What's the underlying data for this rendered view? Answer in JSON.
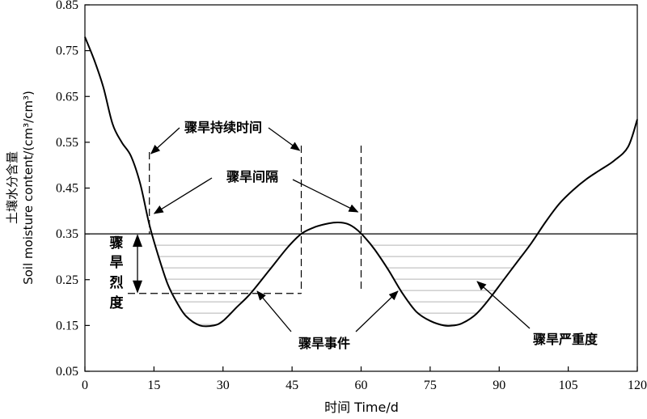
{
  "chart_data": {
    "type": "line",
    "xlabel": "时间 Time/d",
    "ylabel_cn": "土壤水分含量",
    "ylabel_en": "Soil moisture content/(cm³/cm³)",
    "xlim": [
      0,
      120
    ],
    "ylim": [
      0.05,
      0.85
    ],
    "x_ticks": [
      "0",
      "15",
      "30",
      "45",
      "60",
      "75",
      "90",
      "105",
      "120"
    ],
    "y_ticks": [
      "0.05",
      "0.15",
      "0.25",
      "0.35",
      "0.45",
      "0.55",
      "0.65",
      "0.75",
      "0.85"
    ],
    "threshold": 0.35,
    "series": [
      {
        "x": [
          0,
          2,
          4,
          6,
          8,
          10,
          12,
          14,
          16,
          18,
          20,
          22,
          25,
          28,
          30,
          33,
          36,
          40,
          44,
          47,
          50,
          53,
          55,
          57,
          59,
          61,
          63,
          66,
          69,
          72,
          75,
          78,
          80,
          82,
          85,
          88,
          91,
          94,
          97,
          100,
          103,
          106,
          109,
          112,
          115,
          118,
          120
        ],
        "y": [
          0.78,
          0.73,
          0.67,
          0.59,
          0.55,
          0.52,
          0.46,
          0.37,
          0.3,
          0.24,
          0.2,
          0.17,
          0.15,
          0.15,
          0.16,
          0.19,
          0.22,
          0.27,
          0.32,
          0.35,
          0.365,
          0.373,
          0.375,
          0.372,
          0.36,
          0.34,
          0.315,
          0.27,
          0.22,
          0.18,
          0.16,
          0.15,
          0.15,
          0.155,
          0.175,
          0.21,
          0.25,
          0.29,
          0.33,
          0.375,
          0.415,
          0.445,
          0.47,
          0.49,
          0.51,
          0.54,
          0.6
        ]
      }
    ],
    "annotations": {
      "duration": "骤旱持续时间",
      "interval": "骤旱间隔",
      "intensity": [
        "骤",
        "旱",
        "烈",
        "度"
      ],
      "event": "骤旱事件",
      "severity": "骤旱严重度"
    },
    "duration_range": [
      14,
      47
    ],
    "interval_range": [
      14,
      60
    ],
    "intensity_range": [
      0.22,
      0.35
    ],
    "grid": false
  }
}
